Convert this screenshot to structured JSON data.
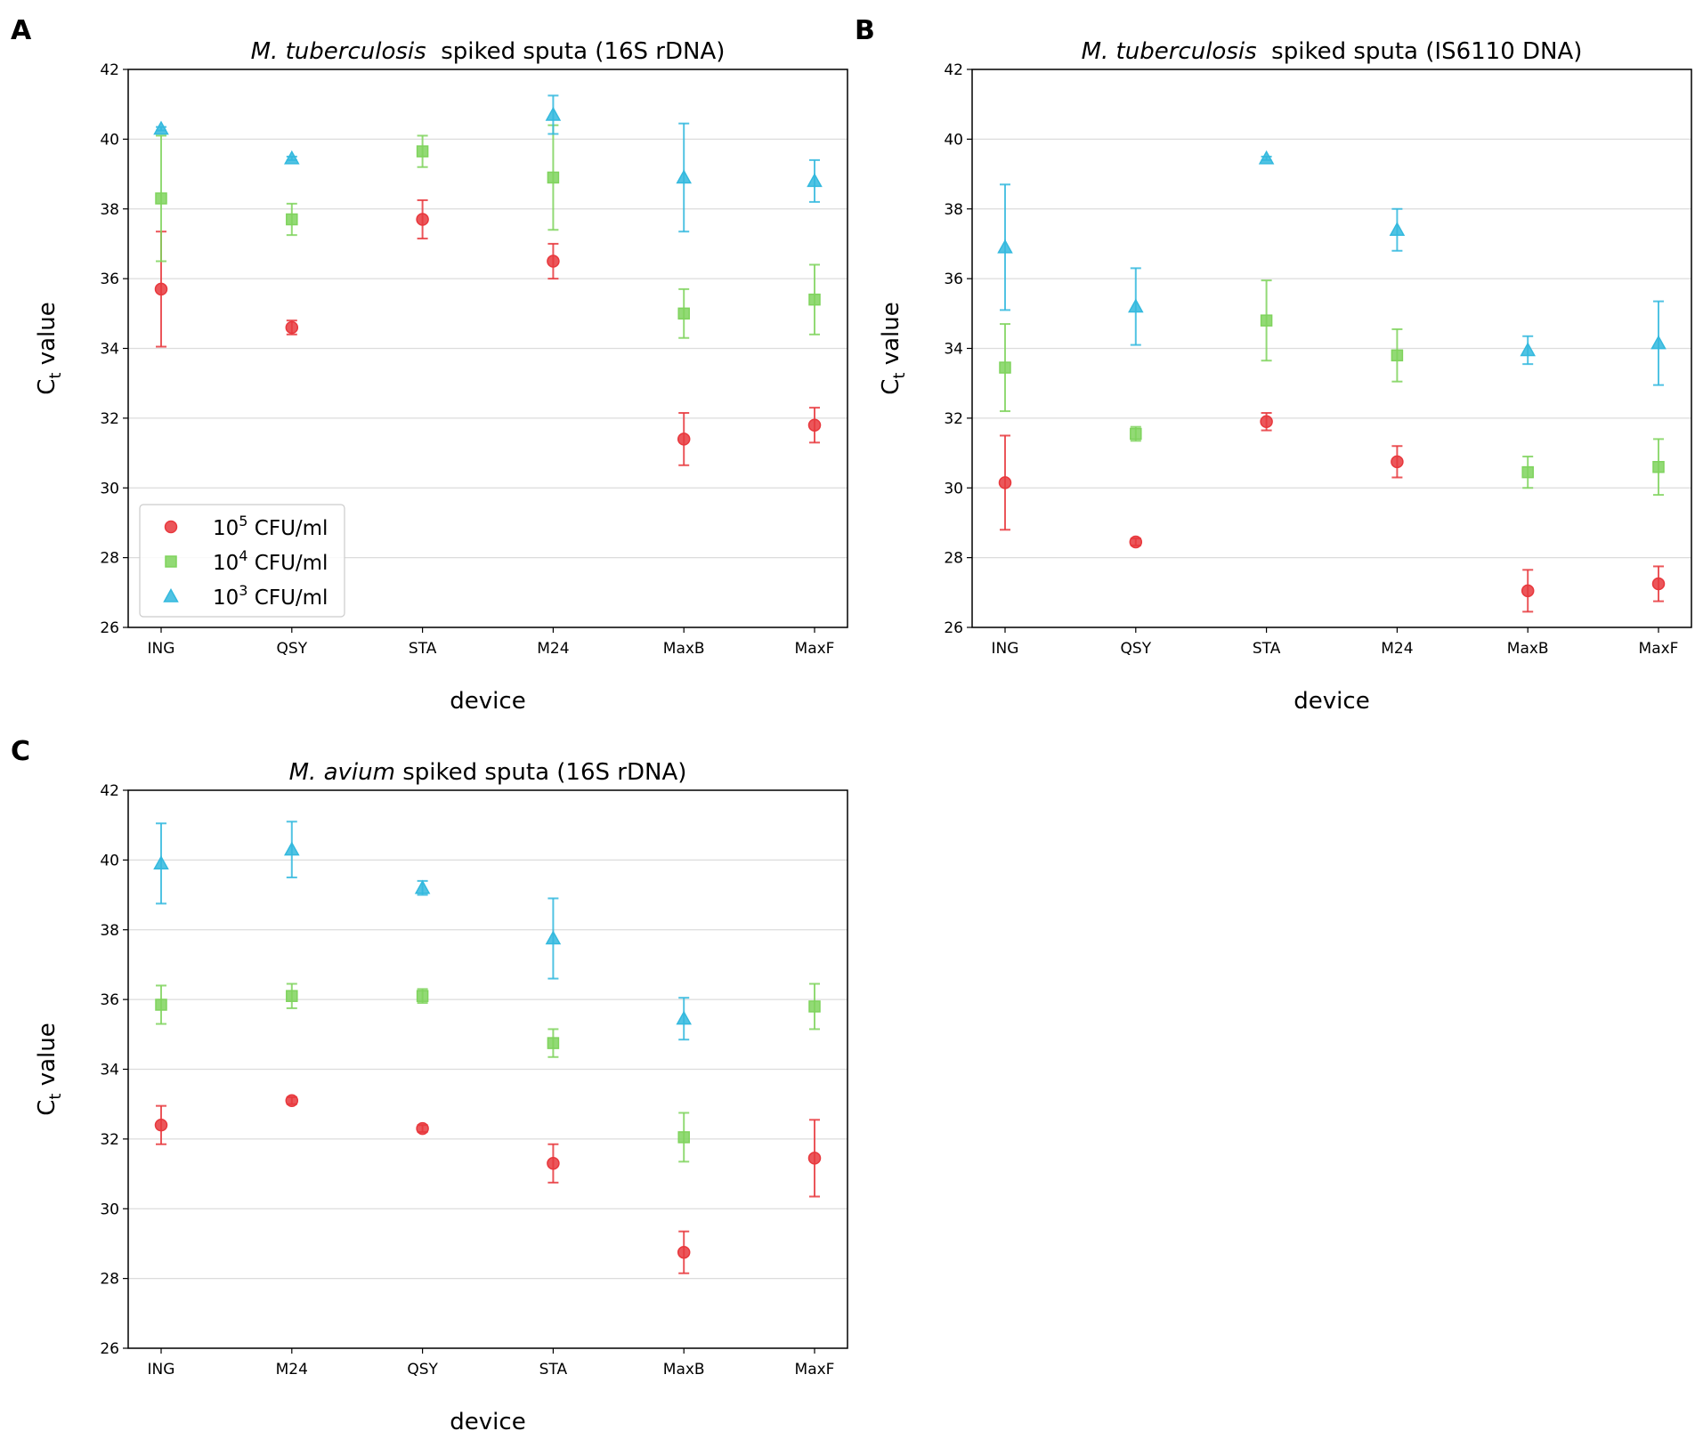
{
  "figure": {
    "legend": {
      "entries": [
        {
          "label": "10",
          "sup": "5",
          "suffix": " CFU/ml",
          "marker": "circle",
          "color": "#e8383d"
        },
        {
          "label": "10",
          "sup": "4",
          "suffix": " CFU/ml",
          "marker": "square",
          "color": "#7fd35d"
        },
        {
          "label": "10",
          "sup": "3",
          "suffix": " CFU/ml",
          "marker": "triangle",
          "color": "#33b9de"
        }
      ],
      "placement": "lower-left",
      "panel": "A"
    }
  },
  "chart_data": [
    {
      "type": "scatter",
      "panel_label": "A",
      "title_italic": "M. tuberculosis",
      "title_rest": "  spiked sputa (16S rDNA)",
      "xlabel": "device",
      "ylabel_main": "C",
      "ylabel_sub": "t",
      "ylabel_rest": " value",
      "ylim": [
        26,
        42
      ],
      "yticks": [
        26,
        28,
        30,
        32,
        34,
        36,
        38,
        40,
        42
      ],
      "grid": "horizontal",
      "categories": [
        "ING",
        "QSY",
        "STA",
        "M24",
        "MaxB",
        "MaxF"
      ],
      "series": [
        {
          "name": "10^5 CFU/ml",
          "marker": "circle",
          "color": "#e8383d",
          "values": [
            35.7,
            34.6,
            37.7,
            36.5,
            31.4,
            31.8
          ],
          "errors": [
            1.65,
            0.2,
            0.55,
            0.5,
            0.75,
            0.5
          ]
        },
        {
          "name": "10^4 CFU/ml",
          "marker": "square",
          "color": "#7fd35d",
          "values": [
            38.3,
            37.7,
            39.65,
            38.9,
            35.0,
            35.4
          ],
          "errors": [
            1.8,
            0.45,
            0.45,
            1.5,
            0.7,
            1.0
          ]
        },
        {
          "name": "10^3 CFU/ml",
          "marker": "triangle",
          "color": "#33b9de",
          "values": [
            40.3,
            39.45,
            null,
            40.7,
            38.9,
            38.8
          ],
          "errors": [
            0.05,
            0.05,
            null,
            0.55,
            1.55,
            0.6
          ]
        }
      ]
    },
    {
      "type": "scatter",
      "panel_label": "B",
      "title_italic": "M. tuberculosis",
      "title_rest": "  spiked sputa (IS6110 DNA)",
      "xlabel": "device",
      "ylabel_main": "C",
      "ylabel_sub": "t",
      "ylabel_rest": " value",
      "ylim": [
        26,
        42
      ],
      "yticks": [
        26,
        28,
        30,
        32,
        34,
        36,
        38,
        40,
        42
      ],
      "grid": "horizontal",
      "categories": [
        "ING",
        "QSY",
        "STA",
        "M24",
        "MaxB",
        "MaxF"
      ],
      "series": [
        {
          "name": "10^5 CFU/ml",
          "marker": "circle",
          "color": "#e8383d",
          "values": [
            30.15,
            28.45,
            31.9,
            30.75,
            27.05,
            27.25
          ],
          "errors": [
            1.35,
            0.1,
            0.25,
            0.45,
            0.6,
            0.5
          ]
        },
        {
          "name": "10^4 CFU/ml",
          "marker": "square",
          "color": "#7fd35d",
          "values": [
            33.45,
            31.55,
            34.8,
            33.8,
            30.45,
            30.6
          ],
          "errors": [
            1.25,
            0.2,
            1.15,
            0.75,
            0.45,
            0.8
          ]
        },
        {
          "name": "10^3 CFU/ml",
          "marker": "triangle",
          "color": "#33b9de",
          "values": [
            36.9,
            35.2,
            39.45,
            37.4,
            33.95,
            34.15
          ],
          "errors": [
            1.8,
            1.1,
            0.05,
            0.6,
            0.4,
            1.2
          ]
        }
      ]
    },
    {
      "type": "scatter",
      "panel_label": "C",
      "title_italic": "M. avium",
      "title_rest": " spiked sputa (16S rDNA)",
      "xlabel": "device",
      "ylabel_main": "C",
      "ylabel_sub": "t",
      "ylabel_rest": " value",
      "ylim": [
        26,
        42
      ],
      "yticks": [
        26,
        28,
        30,
        32,
        34,
        36,
        38,
        40,
        42
      ],
      "grid": "horizontal",
      "categories": [
        "ING",
        "M24",
        "QSY",
        "STA",
        "MaxB",
        "MaxF"
      ],
      "series": [
        {
          "name": "10^5 CFU/ml",
          "marker": "circle",
          "color": "#e8383d",
          "values": [
            32.4,
            33.1,
            32.3,
            31.3,
            28.75,
            31.45
          ],
          "errors": [
            0.55,
            0.1,
            0.1,
            0.55,
            0.6,
            1.1
          ]
        },
        {
          "name": "10^4 CFU/ml",
          "marker": "square",
          "color": "#7fd35d",
          "values": [
            35.85,
            36.1,
            36.1,
            34.75,
            32.05,
            35.8
          ],
          "errors": [
            0.55,
            0.35,
            0.2,
            0.4,
            0.7,
            0.65
          ]
        },
        {
          "name": "10^3 CFU/ml",
          "marker": "triangle",
          "color": "#33b9de",
          "values": [
            39.9,
            40.3,
            39.2,
            37.75,
            35.45,
            null
          ],
          "errors": [
            1.15,
            0.8,
            0.2,
            1.15,
            0.6,
            null
          ]
        }
      ]
    }
  ]
}
